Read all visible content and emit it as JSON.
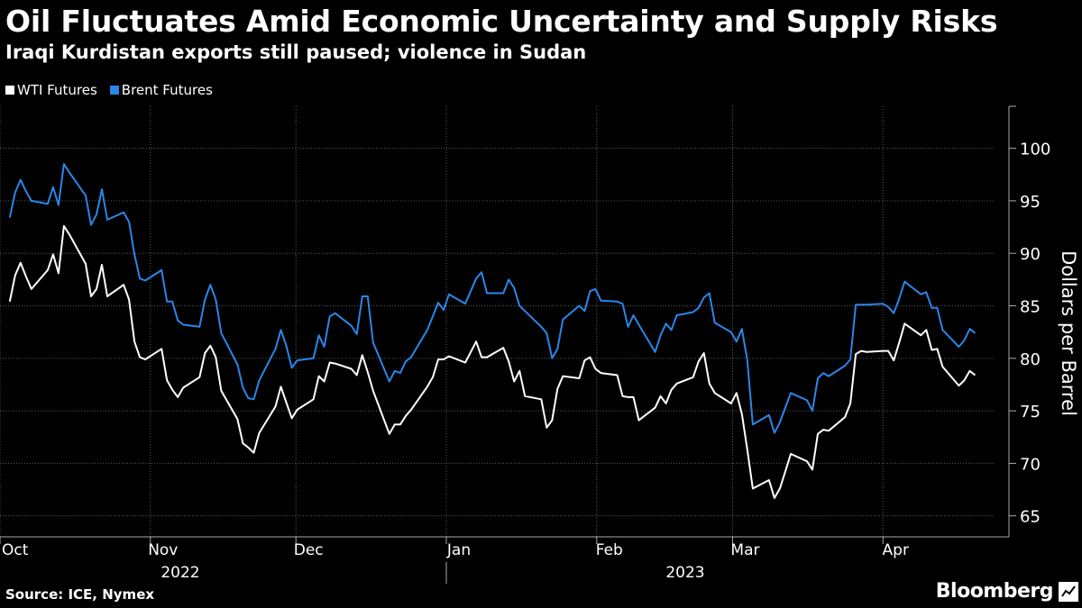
{
  "header": {
    "title": "Oil Fluctuates Amid Economic Uncertainty and Supply Risks",
    "subtitle": "Iraqi Kurdistan exports still paused; violence in Sudan"
  },
  "legend": [
    {
      "label": "WTI Futures",
      "color": "#ffffff"
    },
    {
      "label": "Brent Futures",
      "color": "#2b86e8"
    }
  ],
  "footer": {
    "source": "Source: ICE, Nymex",
    "brand": "Bloomberg"
  },
  "chart_data": {
    "type": "line",
    "title": "Oil Fluctuates Amid Economic Uncertainty and Supply Risks",
    "ylabel": "Dollars per Barrel",
    "ylim": [
      63,
      104
    ],
    "yticks": [
      65,
      70,
      75,
      80,
      85,
      90,
      95,
      100
    ],
    "grid": true,
    "legend_position": "top-left",
    "month_labels": [
      "Oct",
      "Nov",
      "Dec",
      "Jan",
      "Feb",
      "Mar",
      "Apr"
    ],
    "year_labels": [
      "2022",
      "2023"
    ],
    "x_start": "2022-10-03",
    "series": [
      {
        "name": "WTI Futures",
        "color": "#ffffff",
        "values": [
          85.4,
          87.9,
          89.1,
          87.8,
          86.6,
          88.4,
          89.9,
          88.1,
          92.6,
          91.8,
          89.0,
          85.9,
          86.6,
          88.9,
          85.9,
          87.0,
          85.6,
          81.6,
          80.1,
          79.9,
          80.9,
          77.9,
          77.0,
          76.3,
          77.2,
          78.2,
          80.5,
          81.2,
          80.1,
          76.9,
          74.2,
          71.9,
          71.5,
          71.0,
          72.9,
          75.4,
          77.3,
          75.8,
          74.3,
          75.1,
          76.1,
          78.3,
          77.8,
          79.6,
          79.5,
          79.0,
          78.4,
          80.3,
          78.7,
          76.9,
          72.8,
          73.7,
          73.7,
          74.5,
          75.1,
          77.3,
          78.2,
          79.9,
          79.9,
          80.2,
          79.6,
          80.6,
          81.6,
          80.1,
          80.1,
          81.0,
          79.7,
          77.8,
          78.8,
          76.4,
          76.1,
          73.4,
          74.1,
          77.1,
          78.3,
          78.1,
          79.8,
          80.1,
          79.0,
          78.6,
          78.4,
          76.4,
          76.3,
          76.3,
          74.1,
          75.3,
          76.4,
          75.7,
          77.0,
          77.6,
          78.2,
          79.7,
          80.5,
          77.6,
          76.7,
          75.7,
          76.7,
          74.7,
          71.3,
          67.6,
          68.4,
          66.7,
          67.6,
          69.2,
          70.9,
          70.2,
          69.4,
          72.8,
          73.2,
          73.1,
          74.4,
          75.7,
          80.4,
          80.7,
          80.6,
          80.7,
          80.7,
          79.8,
          81.5,
          83.3,
          82.2,
          82.7,
          80.8,
          80.9,
          79.2,
          77.4,
          77.9,
          78.8,
          78.4
        ]
      },
      {
        "name": "Brent Futures",
        "color": "#2b86e8",
        "values": [
          93.4,
          95.8,
          97.0,
          95.9,
          95.0,
          94.7,
          96.3,
          94.6,
          98.5,
          97.7,
          95.5,
          92.7,
          93.7,
          96.1,
          93.2,
          93.9,
          93.0,
          89.9,
          87.6,
          87.4,
          88.4,
          85.4,
          85.4,
          83.6,
          83.2,
          83.0,
          85.6,
          87.0,
          85.6,
          82.4,
          79.4,
          77.2,
          76.2,
          76.1,
          77.9,
          80.9,
          82.7,
          81.2,
          79.1,
          79.8,
          80.0,
          82.2,
          81.1,
          84.0,
          84.3,
          83.1,
          82.3,
          85.9,
          85.9,
          81.5,
          77.8,
          78.8,
          78.6,
          79.7,
          80.1,
          82.7,
          84.0,
          85.3,
          84.6,
          86.1,
          85.2,
          86.4,
          87.6,
          88.2,
          86.2,
          86.2,
          87.5,
          86.7,
          85.0,
          84.5,
          83.0,
          82.4,
          80.0,
          80.9,
          83.7,
          85.0,
          84.5,
          86.4,
          86.6,
          85.5,
          85.4,
          85.2,
          83.0,
          84.1,
          83.2,
          80.6,
          82.2,
          83.3,
          82.7,
          84.1,
          84.4,
          84.8,
          85.8,
          86.2,
          83.4,
          82.5,
          81.6,
          82.8,
          79.8,
          73.7,
          74.6,
          72.9,
          73.9,
          75.3,
          76.7,
          76.0,
          75.0,
          78.1,
          78.6,
          78.3,
          79.3,
          79.9,
          85.1,
          85.1,
          85.1,
          85.2,
          84.9,
          84.3,
          85.7,
          87.3,
          86.1,
          86.3,
          84.8,
          84.8,
          82.7,
          81.1,
          81.7,
          82.8,
          82.4
        ]
      }
    ]
  }
}
